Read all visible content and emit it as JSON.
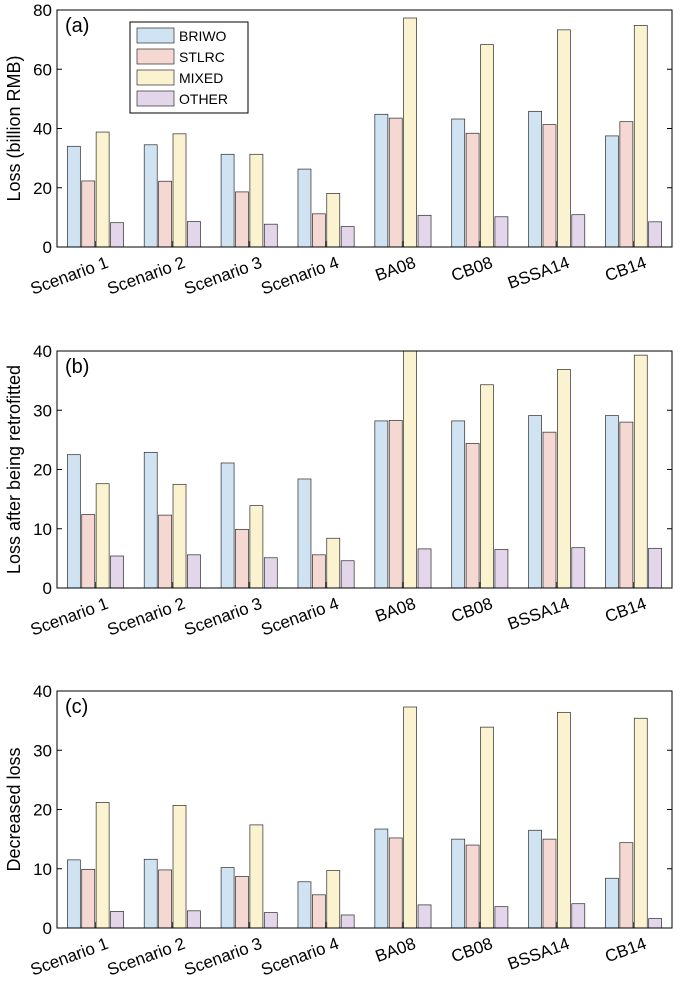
{
  "figure_title": "",
  "colors": {
    "BRIWO": "#cfe3f3",
    "STLRC": "#f6d8d2",
    "MIXED": "#fbf3d0",
    "OTHER": "#e3d6ea",
    "axis": "#000000",
    "bar_edge": "#2b2b2b",
    "center_tick": "#444444"
  },
  "chart_data": [
    {
      "type": "bar",
      "panel_label": "(a)",
      "ylabel": "Loss (billion RMB)",
      "xlabel": "",
      "ylim": [
        0,
        80
      ],
      "yticks": [
        0,
        20,
        40,
        60,
        80
      ],
      "grid": false,
      "legend_placement": "top-left",
      "categories": [
        "Scenario 1",
        "Scenario 2",
        "Scenario 3",
        "Scenario 4",
        "BA08",
        "CB08",
        "BSSA14",
        "CB14"
      ],
      "series": [
        {
          "name": "BRIWO",
          "values": [
            34.0,
            34.5,
            31.3,
            26.3,
            44.8,
            43.2,
            45.8,
            37.5
          ]
        },
        {
          "name": "STLRC",
          "values": [
            22.3,
            22.2,
            18.6,
            11.2,
            43.5,
            38.4,
            41.3,
            42.3
          ]
        },
        {
          "name": "MIXED",
          "values": [
            38.8,
            38.2,
            31.3,
            18.1,
            77.3,
            68.3,
            73.3,
            74.8
          ]
        },
        {
          "name": "OTHER",
          "values": [
            8.2,
            8.6,
            7.7,
            6.9,
            10.7,
            10.2,
            10.9,
            8.5
          ]
        }
      ]
    },
    {
      "type": "bar",
      "panel_label": "(b)",
      "ylabel": "Loss after being retrofitted",
      "xlabel": "",
      "ylim": [
        0,
        40
      ],
      "yticks": [
        0,
        10,
        20,
        30,
        40
      ],
      "grid": false,
      "categories": [
        "Scenario 1",
        "Scenario 2",
        "Scenario 3",
        "Scenario 4",
        "BA08",
        "CB08",
        "BSSA14",
        "CB14"
      ],
      "series": [
        {
          "name": "BRIWO",
          "values": [
            22.5,
            22.9,
            21.1,
            18.4,
            28.2,
            28.2,
            29.1,
            29.1
          ]
        },
        {
          "name": "STLRC",
          "values": [
            12.4,
            12.3,
            9.9,
            5.6,
            28.3,
            24.4,
            26.3,
            28.0
          ]
        },
        {
          "name": "MIXED",
          "values": [
            17.6,
            17.5,
            13.9,
            8.4,
            40.0,
            34.3,
            36.9,
            39.3
          ]
        },
        {
          "name": "OTHER",
          "values": [
            5.4,
            5.6,
            5.1,
            4.6,
            6.6,
            6.5,
            6.8,
            6.7
          ]
        }
      ]
    },
    {
      "type": "bar",
      "panel_label": "(c)",
      "ylabel": "Decreased loss",
      "xlabel": "",
      "ylim": [
        0,
        40
      ],
      "yticks": [
        0,
        10,
        20,
        30,
        40
      ],
      "grid": false,
      "categories": [
        "Scenario 1",
        "Scenario 2",
        "Scenario 3",
        "Scenario 4",
        "BA08",
        "CB08",
        "BSSA14",
        "CB14"
      ],
      "series": [
        {
          "name": "BRIWO",
          "values": [
            11.5,
            11.6,
            10.2,
            7.8,
            16.7,
            15.0,
            16.5,
            8.4
          ]
        },
        {
          "name": "STLRC",
          "values": [
            9.9,
            9.8,
            8.7,
            5.6,
            15.2,
            14.0,
            15.0,
            14.4
          ]
        },
        {
          "name": "MIXED",
          "values": [
            21.2,
            20.7,
            17.4,
            9.7,
            37.3,
            33.9,
            36.4,
            35.4
          ]
        },
        {
          "name": "OTHER",
          "values": [
            2.8,
            2.9,
            2.6,
            2.2,
            3.9,
            3.6,
            4.1,
            1.6
          ]
        }
      ]
    }
  ]
}
